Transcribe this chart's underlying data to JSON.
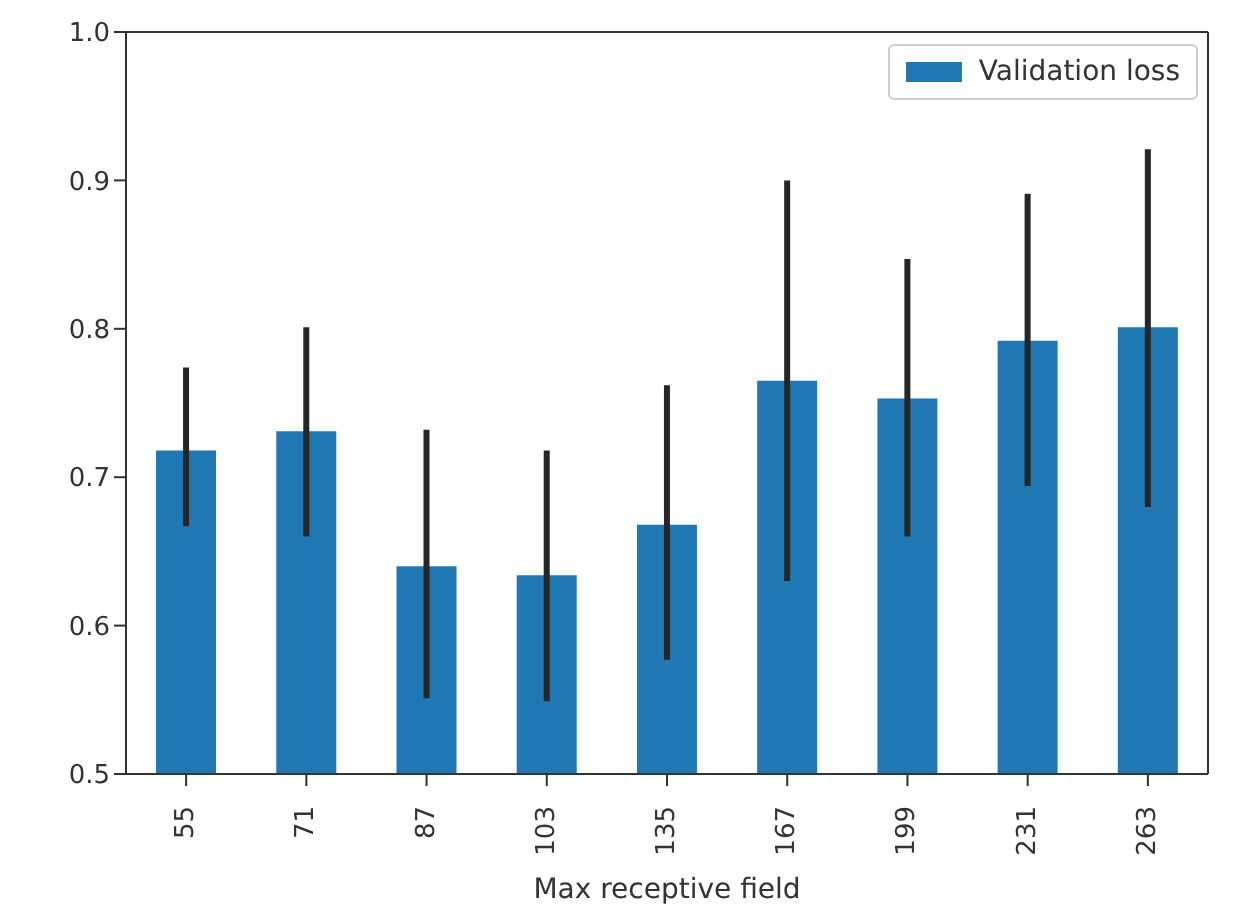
{
  "chart_data": {
    "type": "bar",
    "xlabel": "Max receptive field",
    "categories": [
      "55",
      "71",
      "87",
      "103",
      "135",
      "167",
      "199",
      "231",
      "263"
    ],
    "series": [
      {
        "name": "Validation loss",
        "color": "#1f77b4",
        "values": [
          0.718,
          0.731,
          0.64,
          0.634,
          0.668,
          0.765,
          0.753,
          0.792,
          0.801
        ],
        "errors": [
          [
            0.667,
            0.774
          ],
          [
            0.66,
            0.801
          ],
          [
            0.551,
            0.732
          ],
          [
            0.549,
            0.718
          ],
          [
            0.577,
            0.762
          ],
          [
            0.63,
            0.9
          ],
          [
            0.66,
            0.847
          ],
          [
            0.694,
            0.891
          ],
          [
            0.68,
            0.921
          ]
        ]
      }
    ],
    "ylim": [
      0.5,
      1.0
    ],
    "yticks": [
      {
        "value": 0.5,
        "label": "0.5"
      },
      {
        "value": 0.6,
        "label": "0.6"
      },
      {
        "value": 0.7,
        "label": "0.7"
      },
      {
        "value": 0.8,
        "label": "0.8"
      },
      {
        "value": 0.9,
        "label": "0.9"
      },
      {
        "value": 1.0,
        "label": "1.0"
      }
    ],
    "grid": false,
    "legend": "top right"
  }
}
